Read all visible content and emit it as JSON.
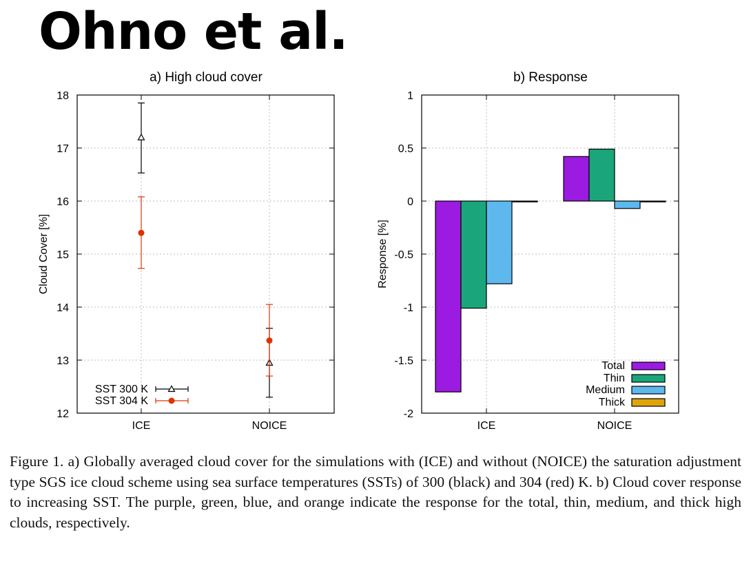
{
  "header": {
    "title": "Ohno et al."
  },
  "chart_data": [
    {
      "type": "scatter",
      "title": "a) High cloud cover",
      "xlabel": "",
      "ylabel": "Cloud Cover [%]",
      "categories": [
        "ICE",
        "NOICE"
      ],
      "ylim": [
        12,
        18
      ],
      "yticks": [
        "12",
        "13",
        "14",
        "15",
        "16",
        "17",
        "18"
      ],
      "grid": true,
      "legend_position": "bottom-left",
      "series": [
        {
          "name": "SST 300 K",
          "color": "#000000",
          "marker": "open-triangle",
          "values": [
            17.2,
            12.95
          ],
          "err_low": [
            16.53,
            12.3
          ],
          "err_high": [
            17.85,
            13.6
          ]
        },
        {
          "name": "SST 304 K",
          "color": "#dd3300",
          "marker": "filled-circle",
          "values": [
            15.4,
            13.37
          ],
          "err_low": [
            14.73,
            12.7
          ],
          "err_high": [
            16.08,
            14.05
          ]
        }
      ]
    },
    {
      "type": "bar",
      "title": "b) Response",
      "xlabel": "",
      "ylabel": "Response [%]",
      "categories": [
        "ICE",
        "NOICE"
      ],
      "ylim": [
        -2,
        1
      ],
      "yticks": [
        "-2",
        "-1.5",
        "-1",
        "-0.5",
        "0",
        "0.5",
        "1"
      ],
      "grid": true,
      "legend_position": "bottom-right",
      "series": [
        {
          "name": "Total",
          "color": "#9b1be0",
          "values": [
            -1.8,
            0.42
          ]
        },
        {
          "name": "Thin",
          "color": "#1aa67a",
          "values": [
            -1.01,
            0.49
          ]
        },
        {
          "name": "Medium",
          "color": "#5db8ee",
          "values": [
            -0.78,
            -0.07
          ]
        },
        {
          "name": "Thick",
          "color": "#e0a40b",
          "values": [
            0.0,
            0.0
          ]
        }
      ]
    }
  ],
  "caption": "Figure 1. a) Globally averaged cloud cover for the simulations with (ICE) and without (NOICE) the saturation adjustment type SGS ice cloud scheme using sea surface temperatures (SSTs) of 300 (black) and 304 (red) K. b) Cloud cover response to increasing SST. The purple, green, blue, and orange indicate the response for the total, thin, medium, and thick high clouds, respectively."
}
